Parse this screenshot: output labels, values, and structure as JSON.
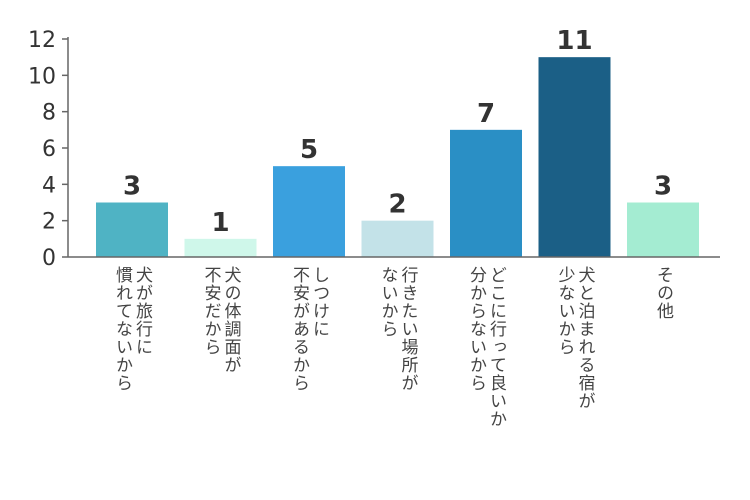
{
  "chart_data": {
    "type": "bar",
    "categories": [
      "犬が旅行に\n慣れてないから",
      "犬の体調面が\n不安だから",
      "しつけに\n不安があるから",
      "行きたい場所が\nないから",
      "どこに行って良いか\n分からないから",
      "犬と泊まれる宿が\n少ないから",
      "その他"
    ],
    "values": [
      3,
      1,
      5,
      2,
      7,
      11,
      3
    ],
    "colors": [
      "#4fb3c4",
      "#cff7ea",
      "#3aa0de",
      "#c3e2e8",
      "#2a8fc5",
      "#1b5f86",
      "#a4ecd2"
    ],
    "ylim": [
      0,
      12
    ],
    "yticks": [
      0,
      2,
      4,
      6,
      8,
      10,
      12
    ],
    "grid": false,
    "title": "",
    "xlabel": "",
    "ylabel": ""
  }
}
